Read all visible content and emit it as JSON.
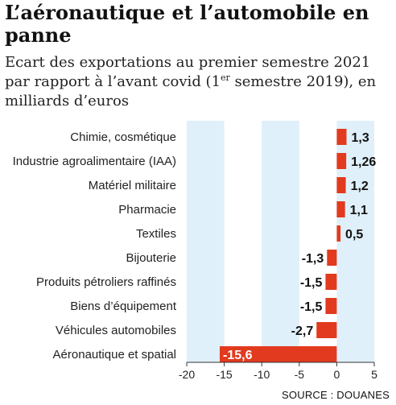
{
  "header": {
    "title": "L’aéronautique et l’automobile en panne",
    "subtitle_main": "Ecart des exportations au premier semestre 2021 par rapport à l’avant covid (1",
    "subtitle_sup": "er",
    "subtitle_end": " semestre 2019), en milliards d’euros"
  },
  "source": "SOURCE : DOUANES",
  "colors": {
    "bar": "#e23a1f",
    "band": "#dff0fb",
    "text": "#111111"
  },
  "chart_data": {
    "type": "bar",
    "orientation": "horizontal",
    "categories": [
      "Chimie, cosmétique",
      "Industrie agroalimentaire (IAA)",
      "Matériel militaire",
      "Pharmacie",
      "Textiles",
      "Bijouterie",
      "Produits pétroliers raffinés",
      "Biens d’équipement",
      "Véhicules automobiles",
      "Aéronautique et spatial"
    ],
    "values": [
      1.3,
      1.26,
      1.2,
      1.1,
      0.5,
      -1.3,
      -1.5,
      -1.5,
      -2.7,
      -15.6
    ],
    "value_labels": [
      "1,3",
      "1,26",
      "1,2",
      "1,1",
      "0,5",
      "-1,3",
      "-1,5",
      "-1,5",
      "-2,7",
      "-15,6"
    ],
    "xlim": [
      -20,
      5
    ],
    "xticks": [
      -20,
      -15,
      -10,
      -5,
      0,
      5
    ],
    "xtick_labels": [
      "-20",
      "-15",
      "-10",
      "-5",
      "0",
      "5"
    ],
    "shaded_bands": [
      [
        -20,
        -15
      ],
      [
        -10,
        -5
      ],
      [
        0,
        5
      ]
    ]
  }
}
